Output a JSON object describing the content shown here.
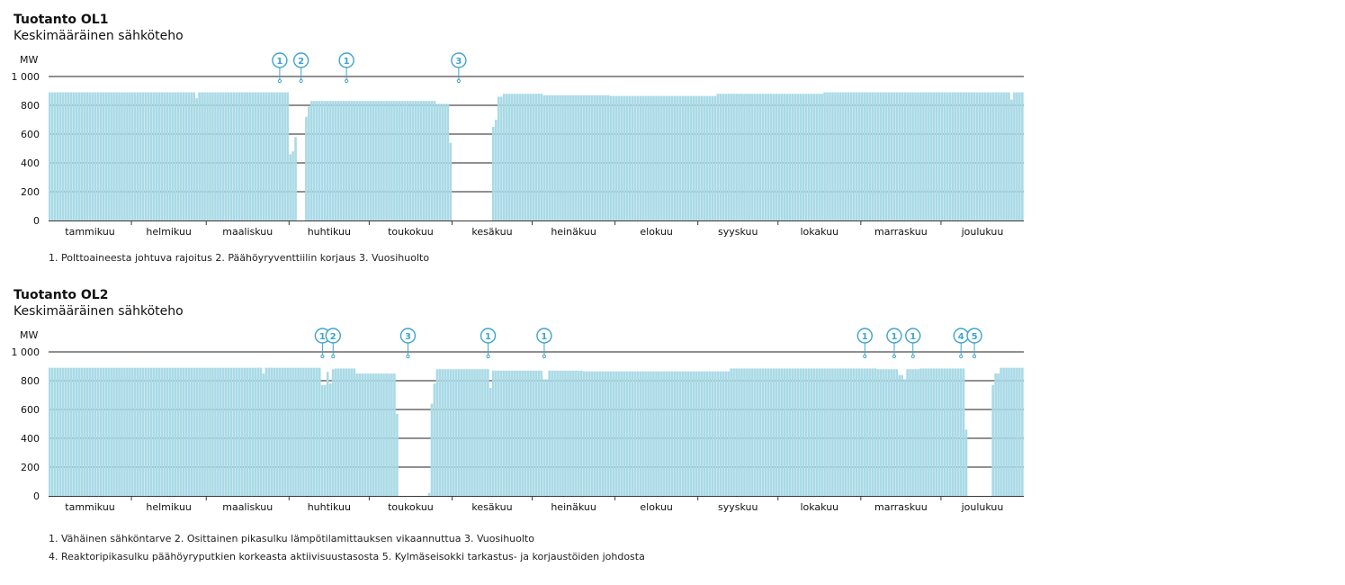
{
  "chart_data": [
    {
      "type": "bar",
      "title": "Tuotanto OL1",
      "subtitle": "Keskimääräinen sähköteho",
      "ylabel": "MW",
      "ylim": [
        0,
        1000
      ],
      "yticks": [
        0,
        200,
        400,
        600,
        800,
        1000
      ],
      "ytick_labels": [
        "0",
        "200",
        "400",
        "600",
        "800",
        "1 000"
      ],
      "x_unit": "day",
      "x_count": 365,
      "grid": true,
      "months": [
        "tammikuu",
        "helmikuu",
        "maaliskuu",
        "huhtikuu",
        "toukokuu",
        "kesäkuu",
        "heinäkuu",
        "elokuu",
        "syyskuu",
        "lokakuu",
        "marraskuu",
        "joulukuu"
      ],
      "segments": [
        {
          "from": 1,
          "to": 55,
          "value": 890
        },
        {
          "from": 56,
          "to": 56,
          "value": 850
        },
        {
          "from": 57,
          "to": 90,
          "value": 890
        },
        {
          "from": 91,
          "to": 91,
          "value": 460
        },
        {
          "from": 92,
          "to": 92,
          "value": 480
        },
        {
          "from": 93,
          "to": 93,
          "value": 580
        },
        {
          "from": 94,
          "to": 94,
          "value": 0
        },
        {
          "from": 95,
          "to": 96,
          "value": 0
        },
        {
          "from": 97,
          "to": 97,
          "value": 720
        },
        {
          "from": 98,
          "to": 98,
          "value": 790
        },
        {
          "from": 99,
          "to": 145,
          "value": 830
        },
        {
          "from": 146,
          "to": 150,
          "value": 810
        },
        {
          "from": 151,
          "to": 151,
          "value": 540
        },
        {
          "from": 152,
          "to": 166,
          "value": 0
        },
        {
          "from": 167,
          "to": 167,
          "value": 650
        },
        {
          "from": 168,
          "to": 168,
          "value": 700
        },
        {
          "from": 169,
          "to": 170,
          "value": 860
        },
        {
          "from": 171,
          "to": 185,
          "value": 880
        },
        {
          "from": 186,
          "to": 210,
          "value": 870
        },
        {
          "from": 211,
          "to": 250,
          "value": 865
        },
        {
          "from": 251,
          "to": 290,
          "value": 880
        },
        {
          "from": 291,
          "to": 360,
          "value": 890
        },
        {
          "from": 361,
          "to": 361,
          "value": 840
        },
        {
          "from": 362,
          "to": 365,
          "value": 890
        }
      ],
      "markers": [
        {
          "label": "1",
          "day": 87
        },
        {
          "label": "2",
          "day": 95
        },
        {
          "label": "1",
          "day": 112
        },
        {
          "label": "3",
          "day": 154
        }
      ],
      "notes": [
        "1. Polttoaineesta johtuva rajoitus   2. Päähöyryventtiilin korjaus   3. Vuosihuolto"
      ]
    },
    {
      "type": "bar",
      "title": "Tuotanto OL2",
      "subtitle": "Keskimääräinen sähköteho",
      "ylabel": "MW",
      "ylim": [
        0,
        1000
      ],
      "yticks": [
        0,
        200,
        400,
        600,
        800,
        1000
      ],
      "ytick_labels": [
        "0",
        "200",
        "400",
        "600",
        "800",
        "1 000"
      ],
      "x_unit": "day",
      "x_count": 365,
      "grid": true,
      "months": [
        "tammikuu",
        "helmikuu",
        "maaliskuu",
        "huhtikuu",
        "toukokuu",
        "kesäkuu",
        "heinäkuu",
        "elokuu",
        "syyskuu",
        "lokakuu",
        "marraskuu",
        "joulukuu"
      ],
      "segments": [
        {
          "from": 1,
          "to": 80,
          "value": 890
        },
        {
          "from": 81,
          "to": 81,
          "value": 850
        },
        {
          "from": 82,
          "to": 102,
          "value": 890
        },
        {
          "from": 103,
          "to": 104,
          "value": 770
        },
        {
          "from": 105,
          "to": 105,
          "value": 860
        },
        {
          "from": 106,
          "to": 106,
          "value": 780
        },
        {
          "from": 107,
          "to": 107,
          "value": 880
        },
        {
          "from": 108,
          "to": 115,
          "value": 885
        },
        {
          "from": 116,
          "to": 130,
          "value": 850
        },
        {
          "from": 131,
          "to": 131,
          "value": 570
        },
        {
          "from": 132,
          "to": 142,
          "value": 0
        },
        {
          "from": 143,
          "to": 143,
          "value": 20
        },
        {
          "from": 144,
          "to": 144,
          "value": 640
        },
        {
          "from": 145,
          "to": 145,
          "value": 780
        },
        {
          "from": 146,
          "to": 165,
          "value": 880
        },
        {
          "from": 166,
          "to": 166,
          "value": 750
        },
        {
          "from": 167,
          "to": 185,
          "value": 870
        },
        {
          "from": 186,
          "to": 187,
          "value": 810
        },
        {
          "from": 188,
          "to": 200,
          "value": 870
        },
        {
          "from": 201,
          "to": 255,
          "value": 865
        },
        {
          "from": 256,
          "to": 310,
          "value": 885
        },
        {
          "from": 311,
          "to": 318,
          "value": 880
        },
        {
          "from": 319,
          "to": 320,
          "value": 840
        },
        {
          "from": 321,
          "to": 321,
          "value": 810
        },
        {
          "from": 322,
          "to": 326,
          "value": 880
        },
        {
          "from": 327,
          "to": 343,
          "value": 885
        },
        {
          "from": 344,
          "to": 344,
          "value": 460
        },
        {
          "from": 345,
          "to": 353,
          "value": 0
        },
        {
          "from": 354,
          "to": 354,
          "value": 770
        },
        {
          "from": 355,
          "to": 356,
          "value": 850
        },
        {
          "from": 357,
          "to": 365,
          "value": 890
        }
      ],
      "markers": [
        {
          "label": "1",
          "day": 103
        },
        {
          "label": "2",
          "day": 107
        },
        {
          "label": "3",
          "day": 135
        },
        {
          "label": "1",
          "day": 165
        },
        {
          "label": "1",
          "day": 186
        },
        {
          "label": "1",
          "day": 306
        },
        {
          "label": "1",
          "day": 317
        },
        {
          "label": "1",
          "day": 324
        },
        {
          "label": "4",
          "day": 342
        },
        {
          "label": "5",
          "day": 347
        }
      ],
      "notes": [
        "1. Vähäinen sähköntarve   2. Osittainen pikasulku lämpötilamittauksen vikaannuttua   3. Vuosihuolto",
        "4. Reaktoripikasulku päähöyryputkien korkeasta aktiivisuustasosta   5. Kylmäseisokki tarkastus- ja korjaustöiden johdosta"
      ]
    }
  ],
  "colors": {
    "bar": "#a9dae6",
    "bar_edge": "#ffffff",
    "marker": "#3fa4cc",
    "grid": "#222222",
    "axis": "#3a3a3a",
    "text": "#111111"
  }
}
